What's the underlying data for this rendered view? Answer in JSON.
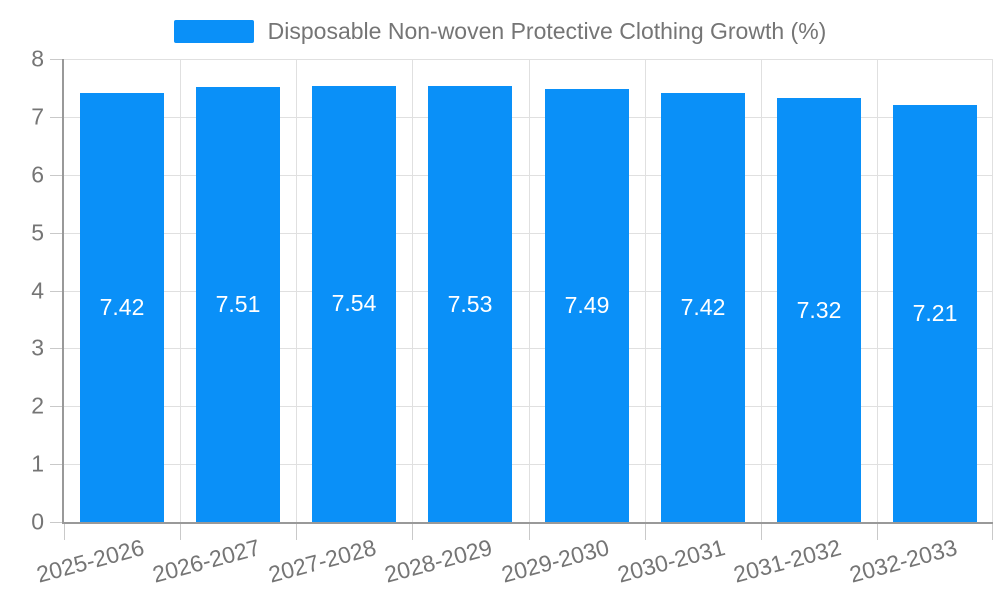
{
  "legend": {
    "label": "Disposable Non-woven Protective Clothing Growth (%)"
  },
  "chart_data": {
    "type": "bar",
    "title": "",
    "legend": [
      "Disposable Non-woven Protective Clothing Growth (%)"
    ],
    "legend_position": "top",
    "categories": [
      "2025-2026",
      "2026-2027",
      "2027-2028",
      "2028-2029",
      "2029-2030",
      "2030-2031",
      "2031-2032",
      "2032-2033"
    ],
    "series": [
      {
        "name": "Disposable Non-woven Protective Clothing Growth (%)",
        "values": [
          7.42,
          7.51,
          7.54,
          7.53,
          7.49,
          7.42,
          7.32,
          7.21
        ]
      }
    ],
    "value_labels": [
      "7.42",
      "7.51",
      "7.54",
      "7.53",
      "7.49",
      "7.42",
      "7.32",
      "7.21"
    ],
    "xlabel": "",
    "ylabel": "",
    "ylim": [
      0,
      8
    ],
    "yticks": [
      0,
      1,
      2,
      3,
      4,
      5,
      6,
      7,
      8
    ],
    "grid": true,
    "x_label_rotation_deg": -15
  },
  "colors": {
    "bar": "#0A90F8",
    "axis": "#999999",
    "gridline": "#E0E0E0",
    "tick": "#C9C9C9",
    "label_text": "#757575",
    "value_text": "#FFFFFF",
    "background": "#FFFFFF"
  }
}
